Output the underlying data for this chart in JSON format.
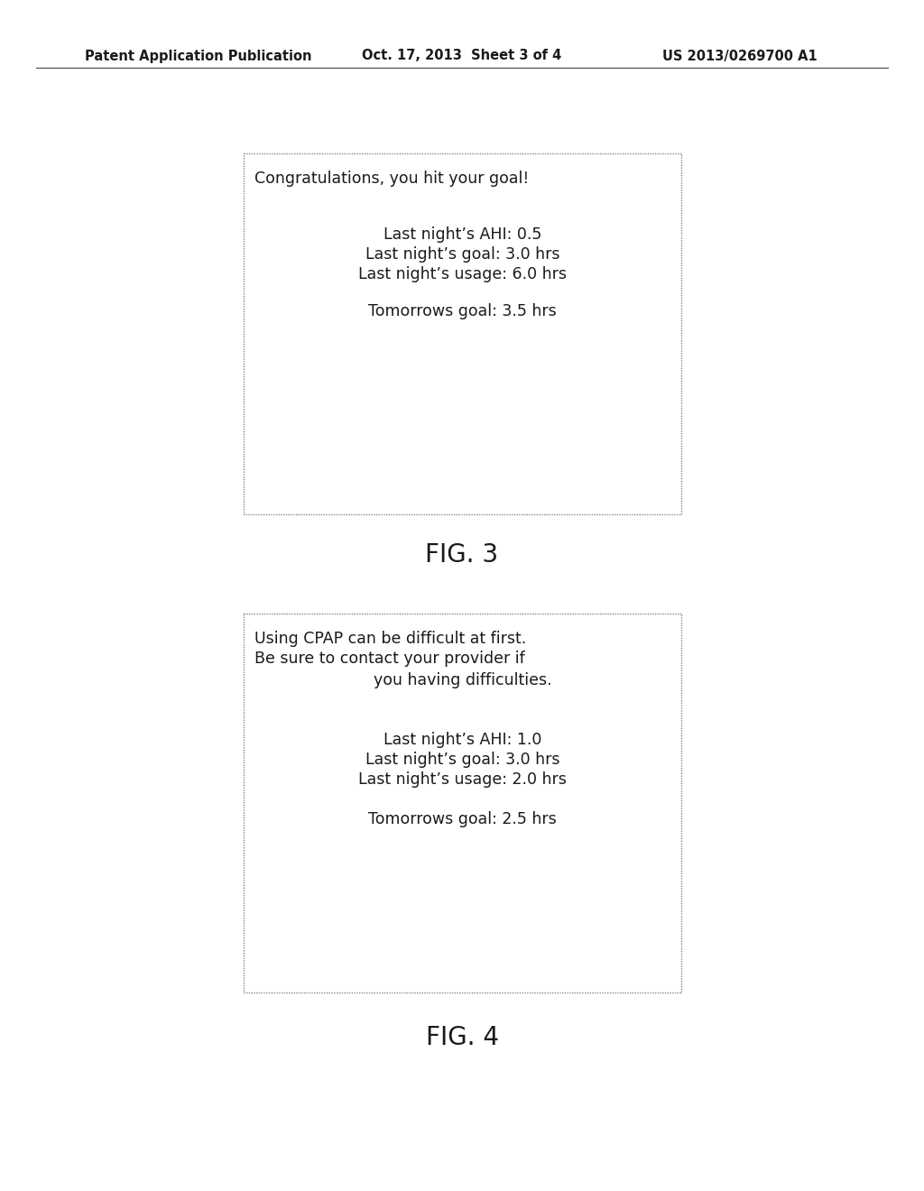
{
  "header_left": "Patent Application Publication",
  "header_mid": "Oct. 17, 2013  Sheet 3 of 4",
  "header_right": "US 2013/0269700 A1",
  "fig3_title": "FIG. 3",
  "fig4_title": "FIG. 4",
  "fig3_line1": "Congratulations, you hit your goal!",
  "fig3_line2": "Last night’s AHI: 0.5",
  "fig3_line3": "Last night’s goal: 3.0 hrs",
  "fig3_line4": "Last night’s usage: 6.0 hrs",
  "fig3_line5": "Tomorrows goal: 3.5 hrs",
  "fig4_line1": "Using CPAP can be difficult at first.",
  "fig4_line2": "Be sure to contact your provider if",
  "fig4_line3": "you having difficulties.",
  "fig4_line4": "Last night’s AHI: 1.0",
  "fig4_line5": "Last night’s goal: 3.0 hrs",
  "fig4_line6": "Last night’s usage: 2.0 hrs",
  "fig4_line7": "Tomorrows goal: 2.5 hrs",
  "bg_color": "#ffffff",
  "text_color": "#1a1a1a",
  "header_fontsize": 10.5,
  "body_fontsize": 12.5,
  "fig_label_fontsize": 20,
  "box_edge_color": "#888888"
}
